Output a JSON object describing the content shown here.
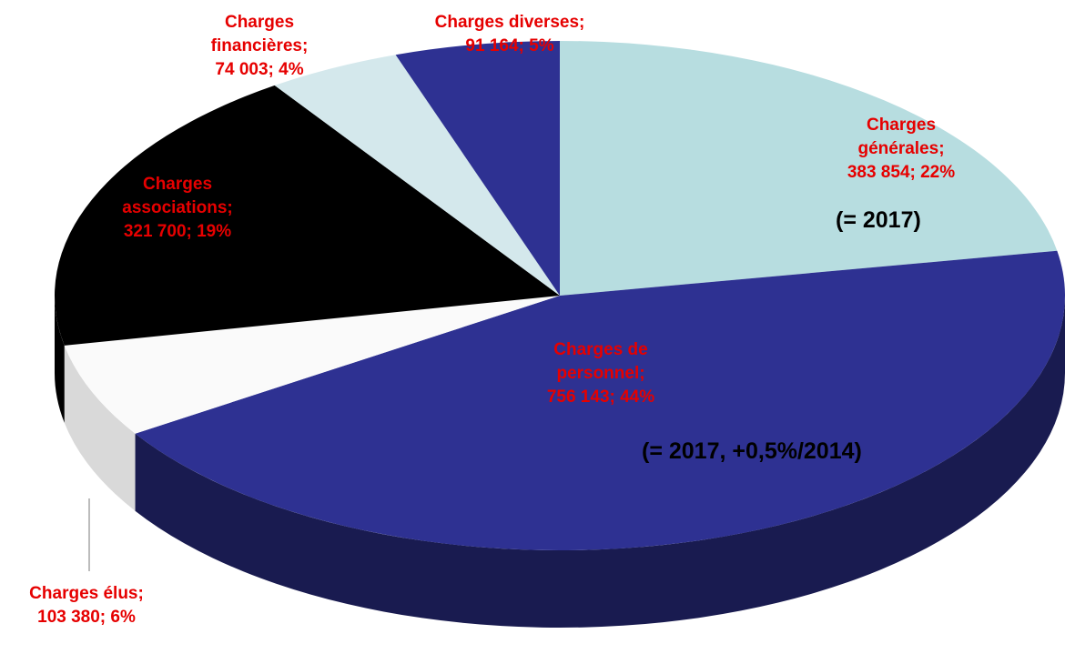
{
  "chart_data": {
    "type": "pie",
    "categories": [
      "Charges générales;",
      "Charges de personnel;",
      "Charges élus;",
      "Charges associations;",
      "Charges financières;",
      "Charges diverses;"
    ],
    "values": [
      383854,
      756143,
      103380,
      321700,
      74003,
      91164
    ],
    "value_labels": [
      "383 854; 22%",
      "756 143; 44%",
      "103 380; 6%",
      "321 700; 19%",
      "74 003; 4%",
      "91 164; 5%"
    ],
    "colors": [
      "#b7dde0",
      "#2e3192",
      "#fafafa",
      "#000000",
      "#d4e8ec",
      "#2e3192"
    ],
    "annotations": [
      "(= 2017)",
      "(= 2017, +0,5%/2014)"
    ]
  }
}
